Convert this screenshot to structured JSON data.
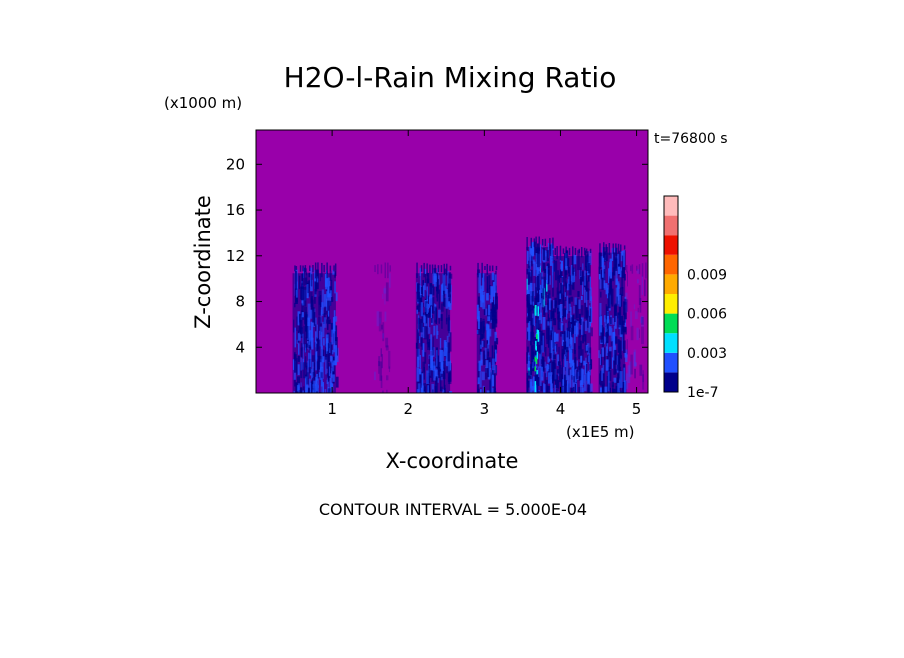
{
  "chart_data": {
    "type": "heatmap",
    "title": "H2O-l-Rain Mixing Ratio",
    "time_label": "t=76800 s",
    "xlabel": "X-coordinate",
    "ylabel": "Z-coordinate",
    "x_unit": "(x1E5 m)",
    "y_unit": "(x1000 m)",
    "xlim": [
      0,
      5.15
    ],
    "ylim": [
      0,
      23
    ],
    "x_ticks": [
      {
        "value": 1,
        "label": "1"
      },
      {
        "value": 2,
        "label": "2"
      },
      {
        "value": 3,
        "label": "3"
      },
      {
        "value": 4,
        "label": "4"
      },
      {
        "value": 5,
        "label": "5"
      }
    ],
    "y_ticks": [
      {
        "value": 4,
        "label": "4"
      },
      {
        "value": 8,
        "label": "8"
      },
      {
        "value": 12,
        "label": "12"
      },
      {
        "value": 16,
        "label": "16"
      },
      {
        "value": 20,
        "label": "20"
      }
    ],
    "background_color": "#9900aa",
    "colorbar": {
      "levels": [
        "1e-7",
        "0.0015",
        "0.003",
        "0.0045",
        "0.006",
        "0.0075",
        "0.009",
        "0.0105",
        "0.012"
      ],
      "colors": [
        "#00008b",
        "#2050ff",
        "#00e0ff",
        "#00dd55",
        "#ffee00",
        "#ffaa00",
        "#ff6600",
        "#ee1100",
        "#f07070",
        "#ffbbbb"
      ],
      "tick_labels": [
        {
          "value": "1e-7",
          "label": "1e-7"
        },
        {
          "value": "0.003",
          "label": "0.003"
        },
        {
          "value": "0.006",
          "label": "0.006"
        },
        {
          "value": "0.009",
          "label": "0.009"
        }
      ]
    },
    "rain_columns": [
      {
        "x_start": 0.48,
        "x_end": 1.05,
        "z_top": 11.0,
        "intensity": "low"
      },
      {
        "x_start": 1.55,
        "x_end": 1.75,
        "z_top": 11.0,
        "intensity": "trace"
      },
      {
        "x_start": 2.1,
        "x_end": 2.55,
        "z_top": 11.0,
        "intensity": "low"
      },
      {
        "x_start": 2.9,
        "x_end": 3.15,
        "z_top": 11.0,
        "intensity": "low"
      },
      {
        "x_start": 3.55,
        "x_end": 3.9,
        "z_top": 13.3,
        "intensity": "moderate"
      },
      {
        "x_start": 3.9,
        "x_end": 4.4,
        "z_top": 12.5,
        "intensity": "low"
      },
      {
        "x_start": 4.5,
        "x_end": 4.85,
        "z_top": 12.8,
        "intensity": "low"
      },
      {
        "x_start": 4.85,
        "x_end": 5.1,
        "z_top": 11.0,
        "intensity": "trace"
      }
    ],
    "footer": "CONTOUR INTERVAL = 5.000E-04"
  }
}
